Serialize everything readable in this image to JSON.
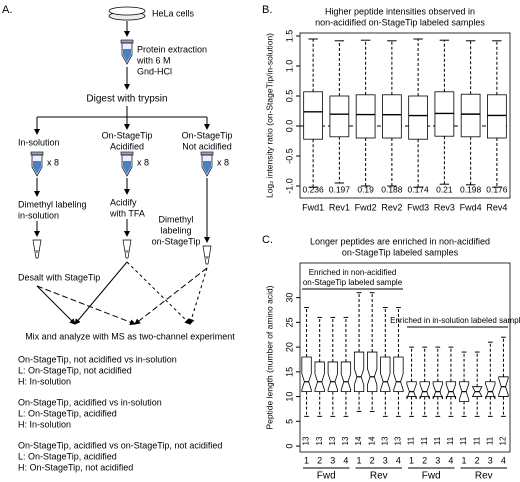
{
  "panel_a": {
    "label": "A.",
    "start": "HeLa cells",
    "extraction": [
      "Protein extraction",
      "with 6 M",
      "Gnd-HCl"
    ],
    "digest": "Digest with trypsin",
    "branches": [
      {
        "name": [
          "In-solution"
        ],
        "count": "x 8",
        "step": [
          "Dimethyl labeling",
          "in-solution"
        ]
      },
      {
        "name": [
          "On-StageTip",
          "Acidified"
        ],
        "count": "x 8",
        "step": [
          "Acidify",
          "with TFA"
        ]
      },
      {
        "name": [
          "On-StageTip",
          "Not acidified"
        ],
        "count": "x 8",
        "step": [
          "Dimethyl",
          "labeling",
          "on-StageTip"
        ]
      }
    ],
    "desalt": "Desalt with StageTip",
    "mix": "Mix and analyze with MS as two-channel experiment",
    "experiments": [
      [
        "On-StageTip, not acidified vs in-solution",
        "L: On-StageTip, not acidified",
        "H: In-solution"
      ],
      [
        "On-StageTip, acidified vs in-solution",
        "L: On-StageTip, acidified",
        "H: In-solution"
      ],
      [
        "On-StageTip, acidified vs on-StageTip, not acidified",
        "L: On-StageTip, acidified",
        "H: On-StageTip, not acidified"
      ]
    ]
  },
  "chart_data": [
    {
      "type": "box",
      "panel_label": "B.",
      "title": [
        "Higher peptide intensities observed in",
        "non-acidified on-StageTip labeled samples"
      ],
      "y_label": "Log₂ intensity ratio (on-StageTip/in-solution)",
      "categories": [
        "Fwd1",
        "Rev1",
        "Fwd2",
        "Rev2",
        "Fwd3",
        "Rev3",
        "Fwd4",
        "Rev4"
      ],
      "median": [
        0.236,
        0.197,
        0.19,
        0.188,
        0.174,
        0.21,
        0.198,
        0.176
      ],
      "q1": [
        -0.22,
        -0.18,
        -0.2,
        -0.2,
        -0.22,
        -0.17,
        -0.18,
        -0.2
      ],
      "q3": [
        0.57,
        0.5,
        0.52,
        0.52,
        0.5,
        0.57,
        0.53,
        0.52
      ],
      "whisker_low": [
        -1.02,
        -0.95,
        -1.0,
        -1.0,
        -1.02,
        -0.97,
        -0.98,
        -1.02
      ],
      "whisker_high": [
        1.45,
        1.42,
        1.43,
        1.42,
        1.45,
        1.43,
        1.42,
        1.42
      ],
      "reference_line": 0,
      "notch": false,
      "ylim": [
        -1.2,
        1.55
      ],
      "yticks": [
        {
          "value": -1,
          "label": "-1.0"
        },
        {
          "value": -0.5,
          "label": "-0.5"
        },
        {
          "value": 0,
          "label": "0.0"
        },
        {
          "value": 0.5,
          "label": "0.5"
        },
        {
          "value": 1,
          "label": "1.0"
        },
        {
          "value": 1.5,
          "label": "1.5"
        }
      ]
    },
    {
      "type": "box",
      "panel_label": "C.",
      "title": [
        "Longer peptides are enriched in non-acidified",
        "on-StageTip labeled samples"
      ],
      "y_label": "Peptide length (number of amino acid)",
      "categories": [
        "1",
        "2",
        "3",
        "4",
        "1",
        "2",
        "3",
        "4",
        "1",
        "2",
        "3",
        "4",
        "1",
        "2",
        "3",
        "4"
      ],
      "groups": [
        "Fwd",
        "Rev",
        "Fwd",
        "Rev"
      ],
      "median": [
        13,
        13,
        13,
        13,
        14,
        14,
        13,
        13,
        11,
        11,
        11,
        11,
        11,
        11,
        11,
        12
      ],
      "q1": [
        11,
        11,
        11,
        11,
        11,
        11,
        11,
        11,
        10,
        10,
        10,
        10,
        9,
        10,
        10,
        10
      ],
      "q3": [
        18,
        17,
        17,
        17,
        19,
        19,
        18,
        18,
        13,
        13,
        13,
        13,
        13,
        12,
        13,
        14
      ],
      "whisker_low": [
        6,
        6,
        6,
        6,
        7,
        7,
        6,
        6,
        6,
        6,
        6,
        6,
        6,
        6,
        6,
        6
      ],
      "whisker_high": [
        28,
        26,
        26,
        26,
        31,
        31,
        28,
        28,
        20,
        20,
        20,
        20,
        19,
        19,
        21,
        22
      ],
      "notch": true,
      "annotations": [
        [
          "Enriched in non-acidified",
          "on-StageTip labeled sample"
        ],
        [
          "Enriched in in-solution labeled sample"
        ]
      ],
      "ylim": [
        -1.2,
        37
      ],
      "yticks": [
        0,
        5,
        10,
        15,
        20,
        25,
        30
      ]
    }
  ]
}
